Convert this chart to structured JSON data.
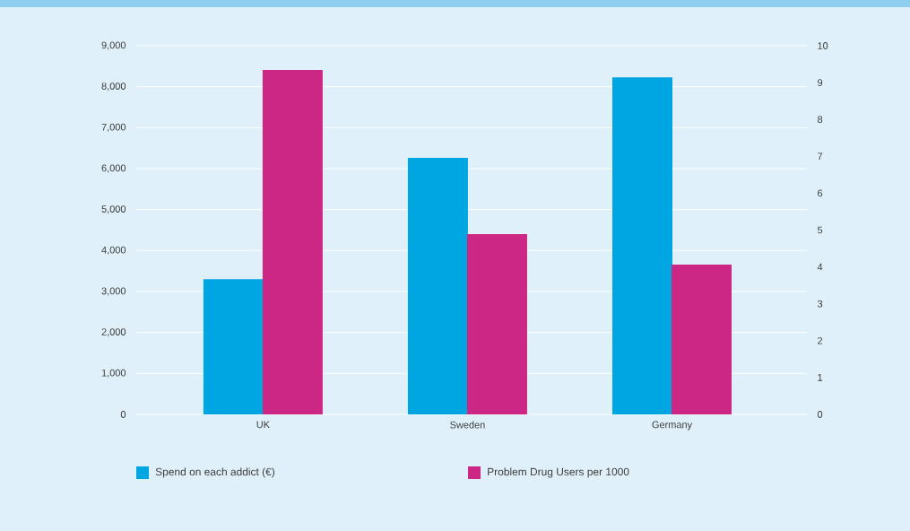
{
  "chart_data": {
    "type": "bar",
    "categories": [
      "UK",
      "Sweden",
      "Germany"
    ],
    "series": [
      {
        "name": "Spend on each addict (€)",
        "color": "#00a6e2",
        "values": [
          3300,
          6260,
          8230
        ]
      },
      {
        "name": "Problem Drug Users per 1000",
        "color": "#cc2784",
        "values": [
          9.34,
          4.89,
          4.06
        ],
        "axis": "y2"
      }
    ],
    "ylim": [
      0,
      9000
    ],
    "yticks": [
      {
        "value": 0,
        "label": "0"
      },
      {
        "value": 1000,
        "label": "1,000"
      },
      {
        "value": 2000,
        "label": "2,000"
      },
      {
        "value": 3000,
        "label": "3,000"
      },
      {
        "value": 4000,
        "label": "4,000"
      },
      {
        "value": 5000,
        "label": "5,000"
      },
      {
        "value": 6000,
        "label": "6,000"
      },
      {
        "value": 7000,
        "label": "7,000"
      },
      {
        "value": 8000,
        "label": "8,000"
      },
      {
        "value": 9000,
        "label": "9,000"
      }
    ],
    "y2lim": [
      0,
      10
    ],
    "y2ticks": [
      0,
      1,
      2,
      3,
      4,
      5,
      6,
      7,
      8,
      9,
      10
    ],
    "grid": "y",
    "legend": "bottom"
  }
}
